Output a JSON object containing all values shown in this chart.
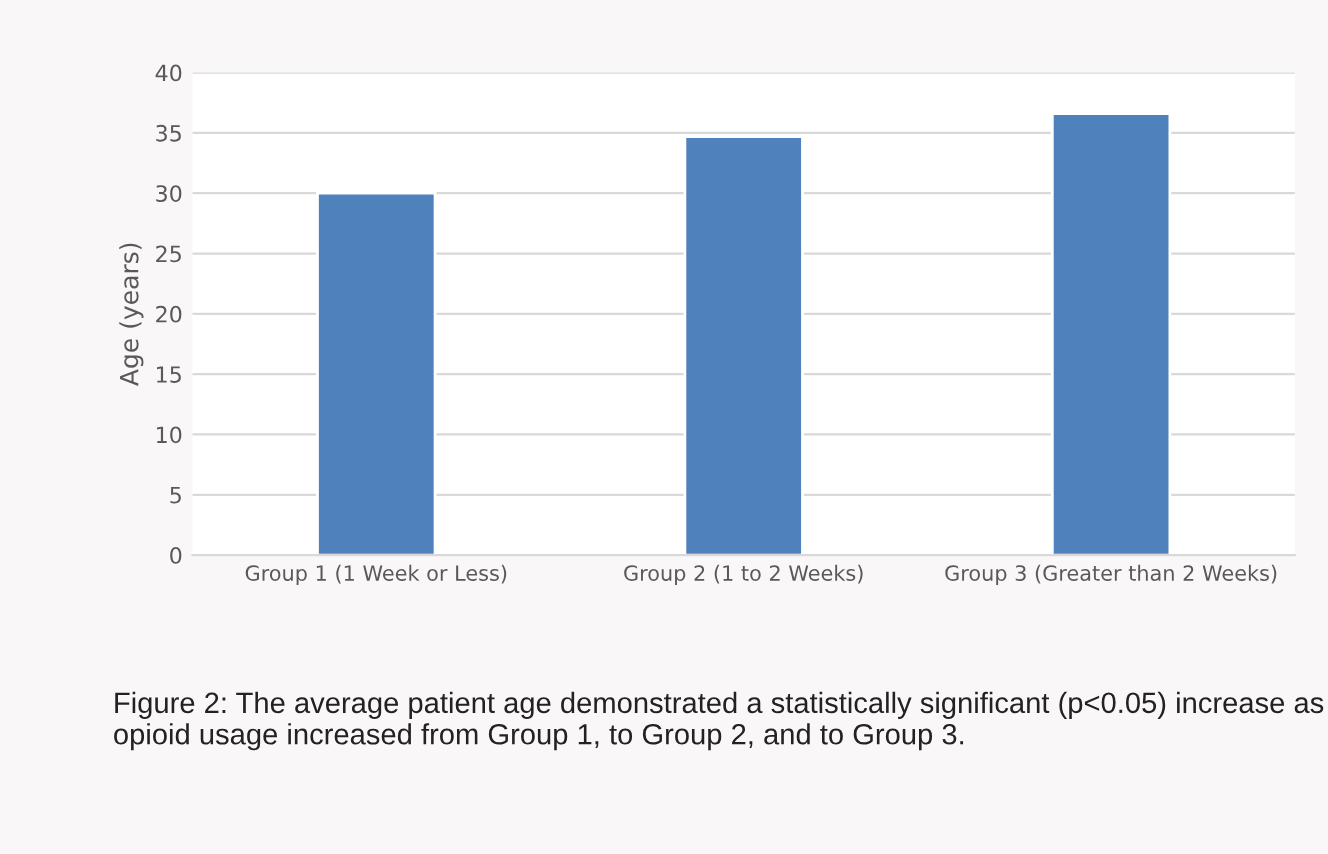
{
  "chart_data": {
    "type": "bar",
    "ylabel": "Age (years)",
    "categories": [
      "Group 1 (1 Week or Less)",
      "Group 2 (1 to 2 Weeks)",
      "Group 3 (Greater than 2 Weeks)"
    ],
    "values": [
      30.0,
      34.7,
      36.6
    ],
    "color": "#4f81bd",
    "ylim": [
      0,
      40
    ],
    "yticks": [
      0,
      5,
      10,
      15,
      20,
      25,
      30,
      35,
      40
    ],
    "grid": "y",
    "annotations": [
      "Figure 2: The average patient age demonstrated a statistically significant (p<0.05) increase as opioid usage increased from Group 1, to Group 2, and to Group 3."
    ]
  }
}
